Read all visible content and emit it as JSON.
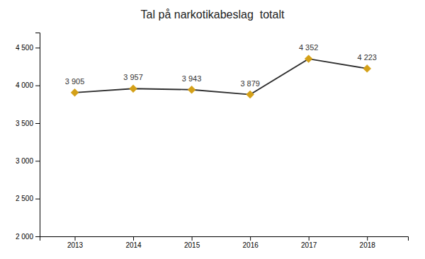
{
  "chart_data": {
    "type": "line",
    "title": "Tal på narkotikabeslag  totalt",
    "x": [
      2013,
      2014,
      2015,
      2016,
      2017,
      2018
    ],
    "values": [
      3905,
      3957,
      3943,
      3879,
      4352,
      4223
    ],
    "value_labels": [
      "3 905",
      "3 957",
      "3 943",
      "3 879",
      "4 352",
      "4 223"
    ],
    "data_labels": true,
    "color": "#2e2e2e",
    "colors": [
      "#d4a017",
      "#d4a017",
      "#d4a017",
      "#d4a017",
      "#d4a017",
      "#d4a017"
    ],
    "marker": "diamond",
    "line_style": "solid",
    "xlim": [
      2012.4,
      2018.7
    ],
    "xticks": [
      2013,
      2014,
      2015,
      2016,
      2017,
      2018
    ],
    "ylim": [
      2000,
      4700
    ],
    "yticks": [
      {
        "value": 2000,
        "label": "2 000"
      },
      {
        "value": 2500,
        "label": "2 500"
      },
      {
        "value": 3000,
        "label": "3 000"
      },
      {
        "value": 3500,
        "label": "3 500"
      },
      {
        "value": 4000,
        "label": "4 000"
      },
      {
        "value": 4500,
        "label": "4 500"
      }
    ],
    "grid": false
  }
}
